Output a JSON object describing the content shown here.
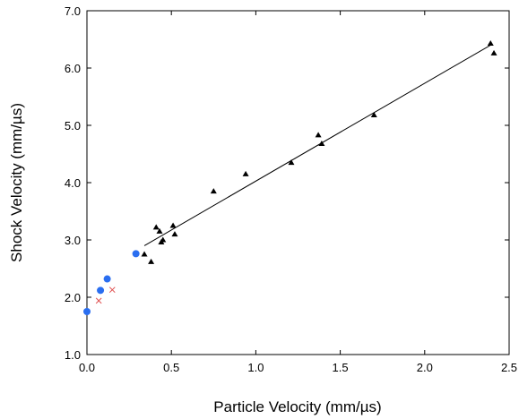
{
  "chart_data": {
    "type": "scatter",
    "xlabel": "Particle Velocity  (mm/µs)",
    "ylabel": "Shock Velocity  (mm/µs)",
    "xlim": [
      0.0,
      2.5
    ],
    "ylim": [
      1.0,
      7.0
    ],
    "x_ticks": [
      "0.0",
      "0.5",
      "1.0",
      "1.5",
      "2.0",
      "2.5"
    ],
    "y_ticks": [
      "1.0",
      "2.0",
      "3.0",
      "4.0",
      "5.0",
      "6.0",
      "7.0"
    ],
    "grid": false,
    "legend": "none",
    "series": [
      {
        "marker": "triangle",
        "color": "#000000",
        "points": [
          [
            0.34,
            2.75
          ],
          [
            0.38,
            2.62
          ],
          [
            0.41,
            3.22
          ],
          [
            0.43,
            3.15
          ],
          [
            0.44,
            2.96
          ],
          [
            0.45,
            3.0
          ],
          [
            0.51,
            3.25
          ],
          [
            0.52,
            3.1
          ],
          [
            0.75,
            3.85
          ],
          [
            0.94,
            4.15
          ],
          [
            1.21,
            4.35
          ],
          [
            1.37,
            4.83
          ],
          [
            1.39,
            4.68
          ],
          [
            1.7,
            5.18
          ],
          [
            2.39,
            6.43
          ],
          [
            2.41,
            6.26
          ]
        ]
      },
      {
        "marker": "circle",
        "color": "#2a6ef0",
        "points": [
          [
            0.0,
            1.75
          ],
          [
            0.08,
            2.12
          ],
          [
            0.12,
            2.32
          ],
          [
            0.29,
            2.76
          ]
        ]
      },
      {
        "marker": "x",
        "color": "#e05050",
        "points": [
          [
            0.07,
            1.94
          ],
          [
            0.15,
            2.13
          ]
        ]
      }
    ],
    "fit_line": {
      "color": "#000000",
      "points": [
        [
          0.34,
          2.9
        ],
        [
          2.39,
          6.4
        ]
      ]
    }
  }
}
